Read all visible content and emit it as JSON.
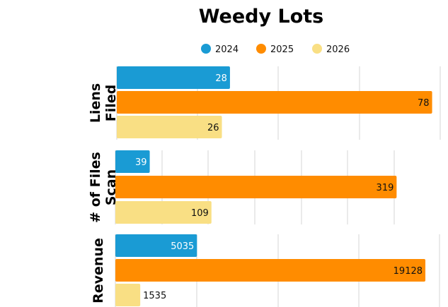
{
  "chart_data": {
    "type": "bar",
    "orientation": "horizontal",
    "title": "Weedy Lots",
    "legend_position": "top",
    "grid": true,
    "series_colors": [
      "#1a9bd4",
      "#ff8c00",
      "#f9df84"
    ],
    "legend": [
      "2024",
      "2025",
      "2026"
    ],
    "panels": [
      {
        "label_lines": [
          "Liens",
          "Filed"
        ],
        "xlim": [
          0,
          80
        ],
        "series": [
          {
            "name": "2024",
            "value": 28,
            "label": "28"
          },
          {
            "name": "2025",
            "value": 78,
            "label": "78"
          },
          {
            "name": "2026",
            "value": 26,
            "label": "26"
          }
        ]
      },
      {
        "label_lines": [
          "# of Files",
          "Scan"
        ],
        "xlim": [
          0,
          350
        ],
        "series": [
          {
            "name": "2024",
            "value": 39,
            "label": "39"
          },
          {
            "name": "2025",
            "value": 319,
            "label": "319"
          },
          {
            "name": "2026",
            "value": 109,
            "label": "109"
          }
        ]
      },
      {
        "label_lines": [
          "Revenue"
        ],
        "xlim": [
          0,
          20000
        ],
        "series": [
          {
            "name": "2024",
            "value": 5035,
            "label": "5035"
          },
          {
            "name": "2025",
            "value": 19128,
            "label": "19128"
          },
          {
            "name": "2026",
            "value": 1535,
            "label": "1535"
          }
        ]
      }
    ]
  }
}
